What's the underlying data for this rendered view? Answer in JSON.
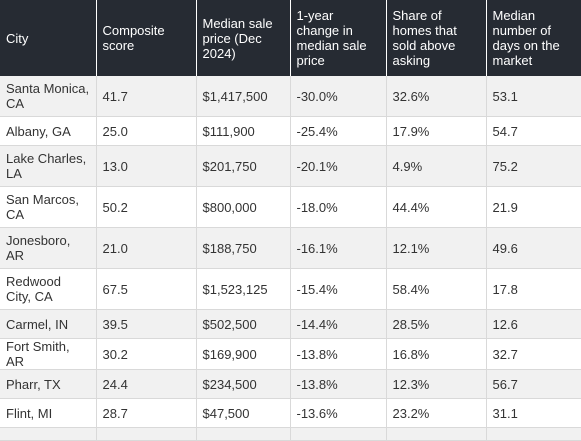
{
  "table": {
    "headers": [
      "City",
      "Composite score",
      "Median sale price (Dec 2024)",
      "1-year change in median sale price",
      "Share of homes that sold above asking",
      "Median number of days on the market"
    ],
    "rows": [
      [
        "Santa Monica, CA",
        "41.7",
        "$1,417,500",
        "-30.0%",
        "32.6%",
        "53.1"
      ],
      [
        "Albany, GA",
        "25.0",
        "$111,900",
        "-25.4%",
        "17.9%",
        "54.7"
      ],
      [
        "Lake Charles, LA",
        "13.0",
        "$201,750",
        "-20.1%",
        "4.9%",
        "75.2"
      ],
      [
        "San Marcos, CA",
        "50.2",
        "$800,000",
        "-18.0%",
        "44.4%",
        "21.9"
      ],
      [
        "Jonesboro, AR",
        "21.0",
        "$188,750",
        "-16.1%",
        "12.1%",
        "49.6"
      ],
      [
        "Redwood City, CA",
        "67.5",
        "$1,523,125",
        "-15.4%",
        "58.4%",
        "17.8"
      ],
      [
        "Carmel, IN",
        "39.5",
        "$502,500",
        "-14.4%",
        "28.5%",
        "12.6"
      ],
      [
        "Fort Smith, AR",
        "30.2",
        "$169,900",
        "-13.8%",
        "16.8%",
        "32.7"
      ],
      [
        "Pharr, TX",
        "24.4",
        "$234,500",
        "-13.8%",
        "12.3%",
        "56.7"
      ],
      [
        "Flint, MI",
        "28.7",
        "$47,500",
        "-13.6%",
        "23.2%",
        "31.1"
      ]
    ]
  },
  "colors": {
    "header_background": "#262b33",
    "header_text": "#ffffff",
    "row_stripe": "#f1f1f1",
    "row_plain": "#ffffff",
    "grid_line": "#d9d9d9",
    "body_text": "#333333"
  }
}
